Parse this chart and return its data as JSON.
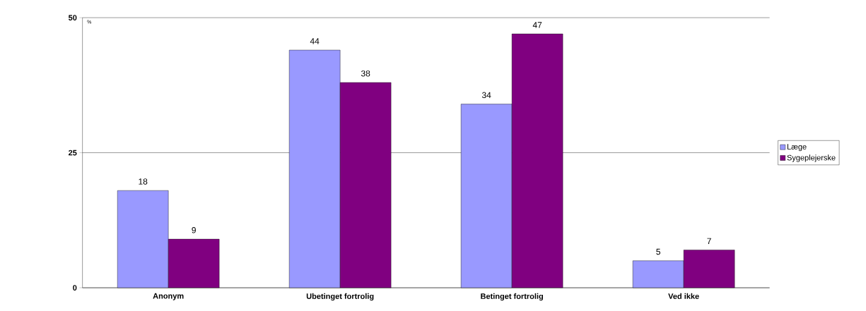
{
  "chart_data": {
    "type": "bar",
    "ylabel": "%",
    "categories": [
      "Anonym",
      "Ubetinget fortrolig",
      "Betinget fortrolig",
      "Ved ikke"
    ],
    "series": [
      {
        "name": "Læge",
        "color": "#9999ff",
        "values": [
          18,
          44,
          34,
          5
        ]
      },
      {
        "name": "Sygeplejerske",
        "color": "#800080",
        "values": [
          9,
          38,
          47,
          7
        ]
      }
    ],
    "ylim": [
      0,
      50
    ],
    "yticks": [
      0,
      25,
      50
    ],
    "grid": "y",
    "legend": "right",
    "data_labels": true
  }
}
